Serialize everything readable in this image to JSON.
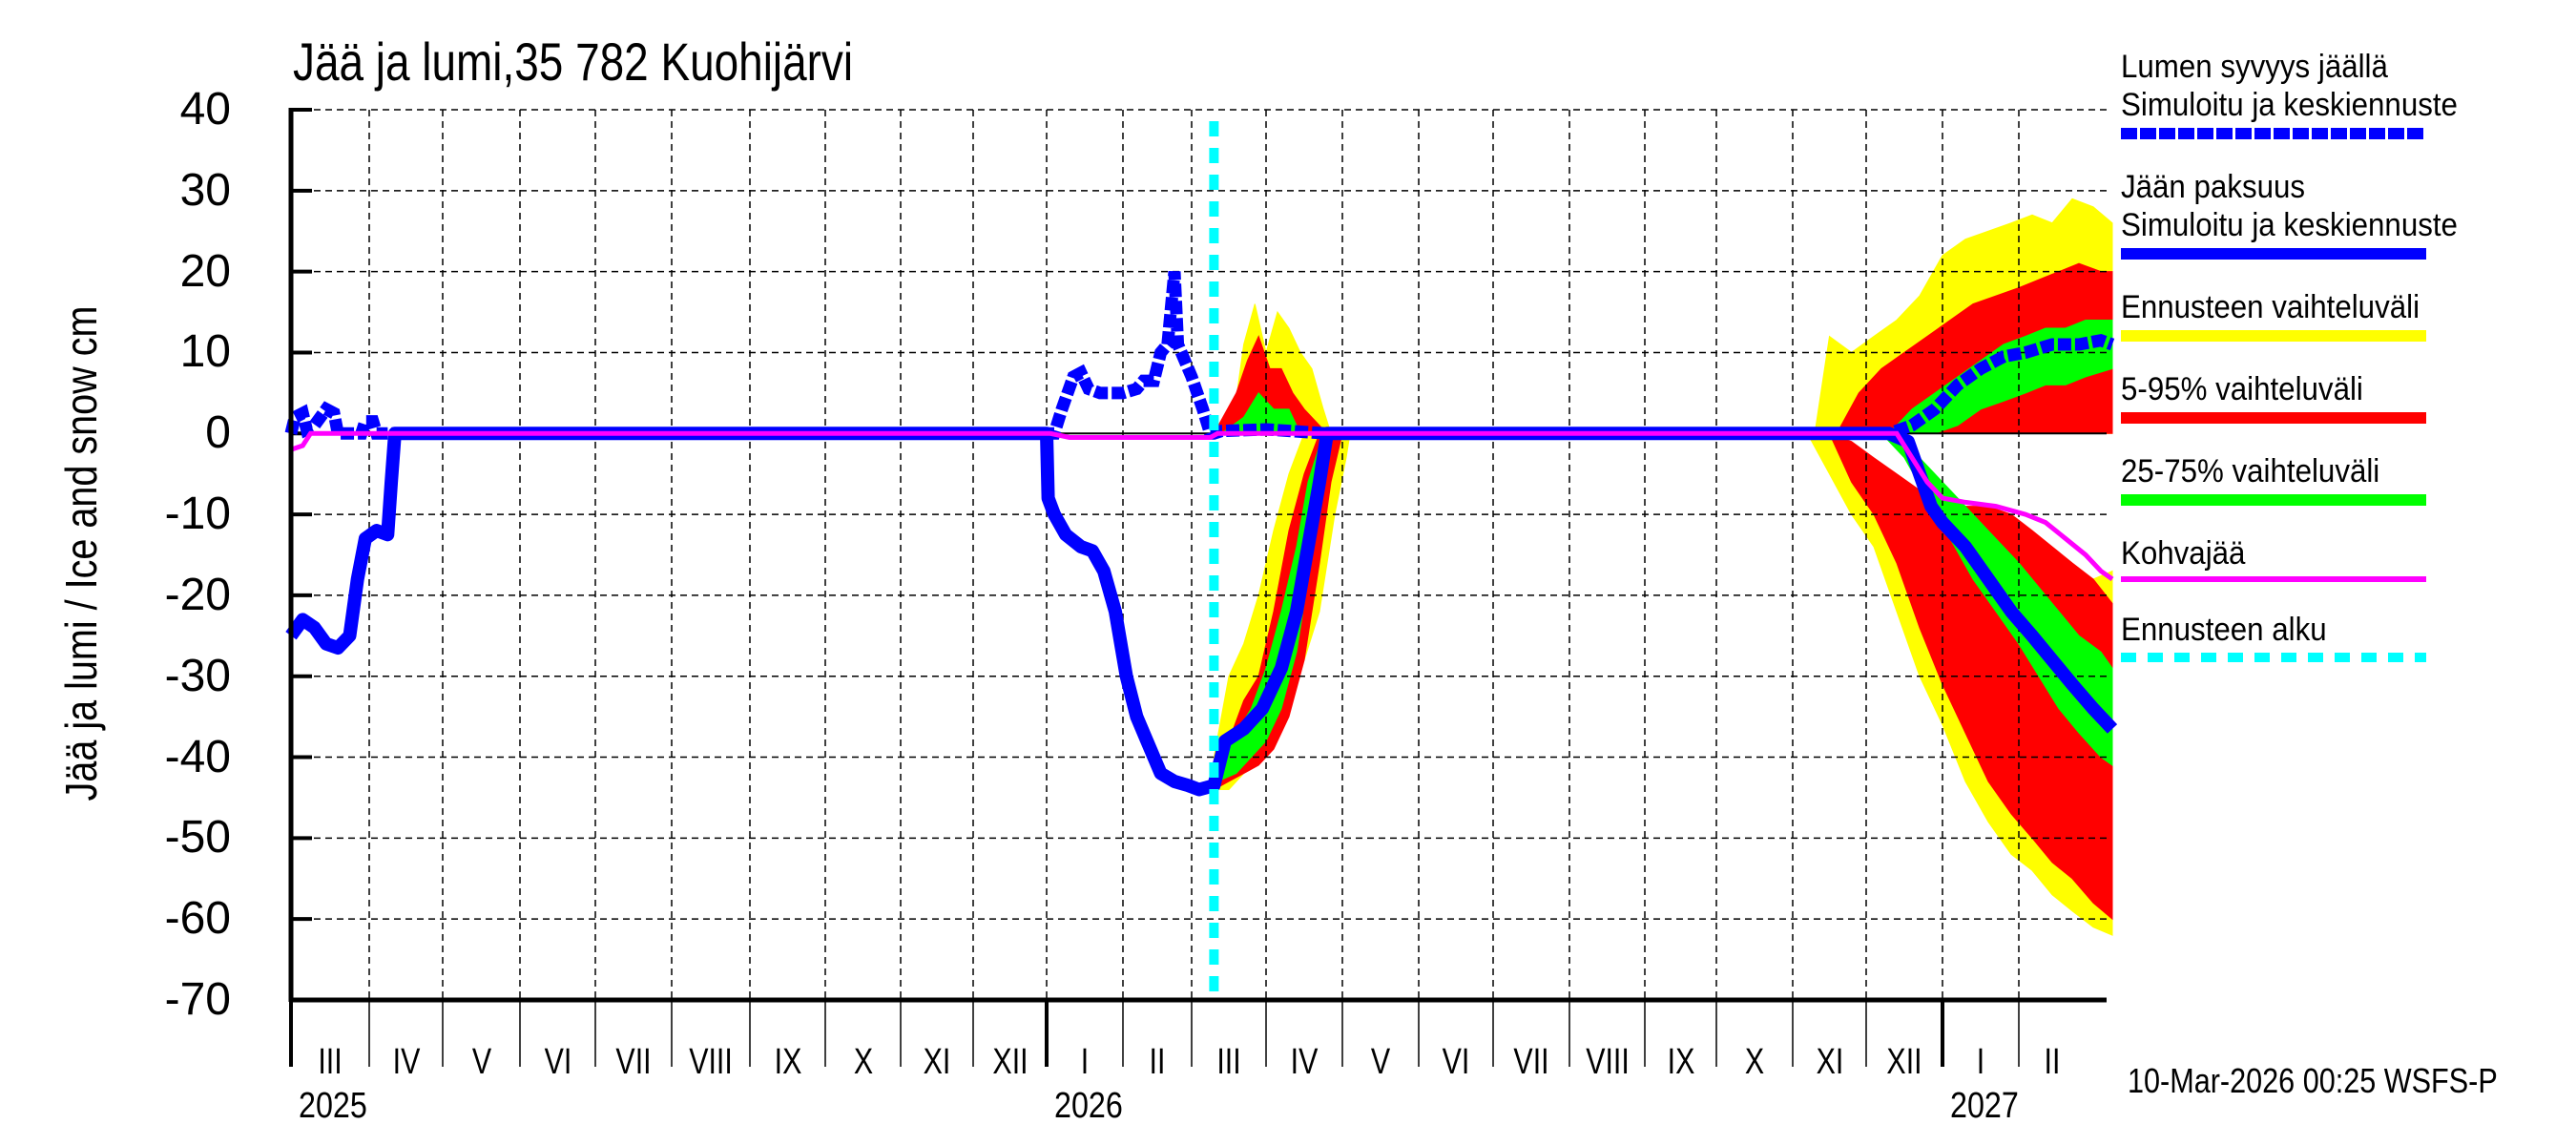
{
  "title": "Jää ja lumi,35 782 Kuohijärvi",
  "y_axis_label": "Jää ja lumi / Ice and snow    cm",
  "timestamp": "10-Mar-2026 00:25 WSFS-P",
  "legend": [
    {
      "label_lines": [
        "Lumen syvyys jäällä",
        "Simuloitu ja keskiennuste"
      ],
      "style": "dashed-thick",
      "color": "#0000ff"
    },
    {
      "label_lines": [
        "Jään paksuus",
        "Simuloitu ja keskiennuste"
      ],
      "style": "solid-thick",
      "color": "#0000ff"
    },
    {
      "label_lines": [
        "Ennusteen vaihteluväli"
      ],
      "style": "band",
      "color": "#ffff00"
    },
    {
      "label_lines": [
        "5-95% vaihteluväli"
      ],
      "style": "band",
      "color": "#ff0000"
    },
    {
      "label_lines": [
        "25-75% vaihteluväli"
      ],
      "style": "band",
      "color": "#00ff00"
    },
    {
      "label_lines": [
        "Kohvajää"
      ],
      "style": "solid-thin",
      "color": "#ff00ff"
    },
    {
      "label_lines": [
        "Ennusteen alku"
      ],
      "style": "dotted-thick",
      "color": "#00ffff"
    }
  ],
  "colors": {
    "snow": "#0000ff",
    "ice": "#0000ff",
    "full_range": "#ffff00",
    "p5_95": "#ff0000",
    "p25_75": "#00ff00",
    "slush": "#ff00ff",
    "forecast_start": "#00ffff",
    "grid": "#000000"
  },
  "chart_data": {
    "type": "area",
    "title": "Jää ja lumi,35 782 Kuohijärvi",
    "xlabel": "",
    "ylabel": "Jää ja lumi / Ice and snow    cm",
    "ylim": [
      -70,
      40
    ],
    "yticks": [
      40,
      30,
      20,
      10,
      0,
      -10,
      -20,
      -30,
      -40,
      -50,
      -60,
      -70
    ],
    "grid": true,
    "legend_position": "right",
    "x_units": "months since 1 Mar 2025",
    "x_range": [
      0,
      24.8
    ],
    "month_ticks": [
      "III",
      "IV",
      "V",
      "VI",
      "VII",
      "VIII",
      "IX",
      "X",
      "XI",
      "XII",
      "I",
      "II",
      "III",
      "IV",
      "V",
      "VI",
      "VII",
      "VIII",
      "IX",
      "X",
      "XI",
      "XII",
      "I",
      "II"
    ],
    "year_labels": [
      {
        "label": "2025",
        "at": 0
      },
      {
        "label": "2026",
        "at": 10
      },
      {
        "label": "2027",
        "at": 22
      }
    ],
    "forecast_start": 12.3,
    "series": [
      {
        "name": "Lumen syvyys jäällä (simuloitu ja keskiennuste)",
        "style": "dashed",
        "points": [
          [
            0,
            0
          ],
          [
            0.05,
            2
          ],
          [
            0.15,
            2.5
          ],
          [
            0.2,
            0.5
          ],
          [
            0.3,
            1
          ],
          [
            0.45,
            3
          ],
          [
            0.55,
            2.5
          ],
          [
            0.6,
            0
          ],
          [
            0.9,
            0
          ],
          [
            0.95,
            1.5
          ],
          [
            1.05,
            1.5
          ],
          [
            1.1,
            0
          ],
          [
            10.0,
            0
          ],
          [
            10.1,
            0
          ],
          [
            10.2,
            3
          ],
          [
            10.35,
            7
          ],
          [
            10.45,
            7.5
          ],
          [
            10.55,
            5.5
          ],
          [
            10.7,
            5
          ],
          [
            11.0,
            5
          ],
          [
            11.2,
            5.5
          ],
          [
            11.3,
            6.5
          ],
          [
            11.45,
            6.5
          ],
          [
            11.55,
            10
          ],
          [
            11.65,
            11
          ],
          [
            11.75,
            20
          ],
          [
            11.8,
            11
          ],
          [
            11.9,
            9
          ],
          [
            12.0,
            7
          ],
          [
            12.15,
            3
          ],
          [
            12.25,
            0
          ],
          [
            12.3,
            0
          ],
          [
            12.4,
            0.3
          ],
          [
            13.0,
            0.5
          ],
          [
            13.8,
            0
          ],
          [
            21.0,
            0
          ],
          [
            21.3,
            0
          ],
          [
            21.6,
            1
          ],
          [
            21.9,
            3
          ],
          [
            22.2,
            6
          ],
          [
            22.5,
            8
          ],
          [
            22.8,
            9.5
          ],
          [
            23.1,
            10
          ],
          [
            23.5,
            11
          ],
          [
            23.9,
            11
          ],
          [
            24.2,
            11.5
          ],
          [
            24.35,
            11
          ]
        ]
      },
      {
        "name": "Jään paksuus (simuloitu ja keskiennuste)",
        "style": "solid",
        "points": [
          [
            0,
            -25
          ],
          [
            0.15,
            -23
          ],
          [
            0.3,
            -24
          ],
          [
            0.45,
            -26
          ],
          [
            0.6,
            -26.5
          ],
          [
            0.75,
            -25
          ],
          [
            0.85,
            -18
          ],
          [
            0.95,
            -13
          ],
          [
            1.1,
            -12
          ],
          [
            1.25,
            -12.5
          ],
          [
            1.3,
            -6
          ],
          [
            1.35,
            0
          ],
          [
            10.0,
            0
          ],
          [
            10.02,
            -8
          ],
          [
            10.1,
            -10
          ],
          [
            10.25,
            -12.5
          ],
          [
            10.45,
            -14
          ],
          [
            10.6,
            -14.5
          ],
          [
            10.75,
            -17
          ],
          [
            10.9,
            -22
          ],
          [
            11.05,
            -30
          ],
          [
            11.2,
            -35
          ],
          [
            11.35,
            -38
          ],
          [
            11.55,
            -42
          ],
          [
            11.75,
            -43
          ],
          [
            11.95,
            -43.5
          ],
          [
            12.1,
            -44
          ],
          [
            12.3,
            -43.5
          ],
          [
            12.45,
            -38
          ],
          [
            12.7,
            -36.5
          ],
          [
            12.95,
            -34
          ],
          [
            13.2,
            -29
          ],
          [
            13.4,
            -22
          ],
          [
            13.55,
            -14
          ],
          [
            13.7,
            -6
          ],
          [
            13.8,
            0
          ],
          [
            21.0,
            0
          ],
          [
            21.3,
            0
          ],
          [
            21.55,
            -1
          ],
          [
            21.7,
            -5
          ],
          [
            21.85,
            -9
          ],
          [
            22.0,
            -11
          ],
          [
            22.3,
            -14
          ],
          [
            22.6,
            -18
          ],
          [
            22.9,
            -22
          ],
          [
            23.2,
            -25
          ],
          [
            23.5,
            -28
          ],
          [
            23.8,
            -31
          ],
          [
            24.1,
            -34
          ],
          [
            24.35,
            -36.5
          ]
        ]
      },
      {
        "name": "Kohvajää",
        "style": "solid-thin",
        "points": [
          [
            0,
            -2
          ],
          [
            0.15,
            -1.5
          ],
          [
            0.25,
            0
          ],
          [
            10.05,
            0
          ],
          [
            10.3,
            -0.5
          ],
          [
            12.25,
            -0.5
          ],
          [
            12.35,
            0
          ],
          [
            21.4,
            0
          ],
          [
            21.6,
            -3
          ],
          [
            21.8,
            -6
          ],
          [
            22.0,
            -8
          ],
          [
            22.3,
            -8.5
          ],
          [
            22.7,
            -9
          ],
          [
            23.1,
            -10
          ],
          [
            23.4,
            -11
          ],
          [
            23.7,
            -13
          ],
          [
            24.0,
            -15
          ],
          [
            24.2,
            -17
          ],
          [
            24.35,
            -18
          ]
        ]
      }
    ],
    "bands": [
      {
        "name": "Ennusteen vaihteluväli",
        "color": "#ffff00",
        "snow_spring": {
          "x": [
            12.3,
            12.55,
            12.7,
            12.85,
            13.0,
            13.15,
            13.3,
            13.45,
            13.6,
            13.75,
            13.85
          ],
          "upper": [
            0,
            1,
            11,
            16,
            10,
            15,
            13,
            10,
            8,
            3,
            0
          ]
        },
        "ice_spring": {
          "x": [
            12.3,
            12.5,
            12.7,
            12.9,
            13.1,
            13.3,
            13.5,
            13.7,
            13.9,
            14.05,
            14.1
          ],
          "upper": [
            -40,
            -30,
            -26,
            -20,
            -12,
            -5,
            0,
            0,
            0,
            0,
            0
          ],
          "lower": [
            -44,
            -44,
            -42,
            -40,
            -38,
            -32,
            -28,
            -22,
            -10,
            -3,
            0
          ]
        },
        "snow_winter": {
          "x": [
            20.3,
            20.5,
            20.8,
            21.1,
            21.4,
            21.7,
            22.0,
            22.3,
            22.6,
            22.9,
            23.2,
            23.5,
            23.8,
            24.1,
            24.35
          ],
          "upper": [
            0,
            12,
            10,
            12,
            14,
            17,
            22,
            24,
            25,
            26,
            27,
            26,
            29,
            28,
            26
          ]
        },
        "ice_winter": {
          "x": [
            20.2,
            20.5,
            20.8,
            21.1,
            21.4,
            21.7,
            22.0,
            22.3,
            22.6,
            22.9,
            23.2,
            23.5,
            23.8,
            24.1,
            24.35
          ],
          "upper": [
            0,
            0,
            -2,
            -5,
            -8,
            -10,
            -10,
            -10,
            -10,
            -12,
            -14,
            -16,
            -17,
            -18,
            -17
          ],
          "lower": [
            0,
            -5,
            -10,
            -14,
            -22,
            -30,
            -36,
            -43,
            -48,
            -52,
            -54,
            -57,
            -59,
            -61,
            -62
          ]
        }
      },
      {
        "name": "5-95% vaihteluväli",
        "color": "#ff0000",
        "snow_spring": {
          "x": [
            12.3,
            12.6,
            12.75,
            12.9,
            13.05,
            13.2,
            13.35,
            13.5,
            13.7,
            13.8
          ],
          "upper": [
            0,
            5,
            9,
            12,
            8,
            8,
            5,
            3,
            1,
            0
          ]
        },
        "ice_spring": {
          "x": [
            12.3,
            12.5,
            12.7,
            12.9,
            13.1,
            13.3,
            13.5,
            13.7,
            13.85,
            14.0
          ],
          "upper": [
            -41,
            -38,
            -33,
            -30,
            -22,
            -12,
            -5,
            0,
            0,
            0
          ],
          "lower": [
            -44,
            -43,
            -42,
            -41,
            -39,
            -35,
            -28,
            -16,
            -6,
            0
          ]
        },
        "snow_winter": {
          "x": [
            20.6,
            20.9,
            21.2,
            21.5,
            21.8,
            22.1,
            22.4,
            22.7,
            23.0,
            23.3,
            23.6,
            23.9,
            24.2,
            24.35
          ],
          "upper": [
            0,
            5,
            8,
            10,
            12,
            14,
            16,
            17,
            18,
            19,
            20,
            21,
            20,
            20
          ],
          "lower": [
            0,
            0,
            0,
            0,
            0,
            0,
            0,
            0,
            0,
            0,
            0,
            0,
            0,
            0
          ]
        },
        "ice_winter": {
          "x": [
            20.5,
            20.8,
            21.1,
            21.4,
            21.7,
            22.0,
            22.3,
            22.6,
            22.9,
            23.2,
            23.5,
            23.8,
            24.1,
            24.35
          ],
          "upper": [
            0,
            -1,
            -3,
            -5,
            -7,
            -8,
            -9,
            -9,
            -10,
            -12,
            -14,
            -16,
            -18,
            -21
          ],
          "lower": [
            0,
            -6,
            -10,
            -16,
            -24,
            -31,
            -37,
            -43,
            -47,
            -50,
            -53,
            -55,
            -58,
            -60
          ]
        }
      },
      {
        "name": "25-75% vaihteluväli",
        "color": "#00ff00",
        "snow_spring": {
          "x": [
            12.4,
            12.7,
            12.9,
            13.1,
            13.3,
            13.45
          ],
          "upper": [
            0,
            2,
            5,
            3,
            3,
            0
          ]
        },
        "ice_spring": {
          "x": [
            12.35,
            12.6,
            12.8,
            13.0,
            13.2,
            13.4,
            13.55,
            13.75,
            13.85
          ],
          "upper": [
            -40,
            -37,
            -34,
            -29,
            -22,
            -14,
            -6,
            0,
            0
          ],
          "lower": [
            -43,
            -42,
            -40,
            -38,
            -34,
            -27,
            -18,
            -6,
            0
          ]
        },
        "snow_winter": {
          "x": [
            21.3,
            21.6,
            21.9,
            22.2,
            22.5,
            22.8,
            23.1,
            23.4,
            23.7,
            24.0,
            24.35
          ],
          "upper": [
            0,
            3,
            5,
            7,
            9,
            11,
            12,
            13,
            13,
            14,
            14
          ],
          "lower": [
            0,
            0,
            0,
            1,
            3,
            4,
            5,
            6,
            6,
            7,
            8
          ]
        },
        "ice_winter": {
          "x": [
            21.2,
            21.5,
            21.8,
            22.1,
            22.4,
            22.7,
            23.0,
            23.3,
            23.6,
            23.9,
            24.2,
            24.35
          ],
          "upper": [
            0,
            -1,
            -4,
            -7,
            -10,
            -13,
            -16,
            -19,
            -22,
            -25,
            -27,
            -29
          ],
          "lower": [
            0,
            -3,
            -8,
            -13,
            -18,
            -22,
            -26,
            -30,
            -34,
            -37,
            -40,
            -41
          ]
        }
      }
    ]
  }
}
